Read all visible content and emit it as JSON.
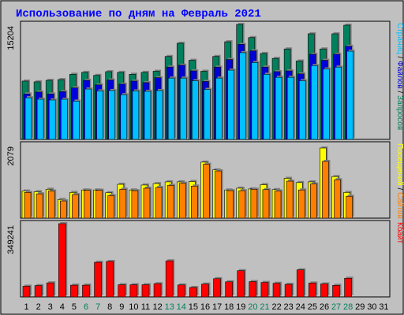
{
  "colors": {
    "background": "#C0C0C0",
    "title": "#0000FF",
    "hits": "#00805C",
    "files": "#0000D8",
    "pages": "#00C0FF",
    "visits": "#FFFF00",
    "sites": "#FF8000",
    "kbytes": "#FF0000",
    "day_weekday": "#000000",
    "day_weekend": "#00805C"
  },
  "chart_data": [
    {
      "type": "bar",
      "title": "Использование по дням на Февраль 2021",
      "categories": [
        "1",
        "2",
        "3",
        "4",
        "5",
        "6",
        "7",
        "8",
        "9",
        "10",
        "11",
        "12",
        "13",
        "14",
        "15",
        "16",
        "17",
        "18",
        "19",
        "20",
        "21",
        "22",
        "23",
        "24",
        "25",
        "26",
        "27",
        "28",
        "29",
        "30",
        "31"
      ],
      "weekend_days": [
        "6",
        "7",
        "13",
        "14",
        "20",
        "21",
        "27",
        "28"
      ],
      "ymax_label": "15204",
      "ylim": [
        0,
        15204
      ],
      "legend": [
        "Запросов",
        "Файлов",
        "Страниц"
      ],
      "legend_placement": "right, vertical",
      "series": [
        {
          "name": "Запросов",
          "values": [
            7710,
            7610,
            7810,
            7910,
            8610,
            8860,
            8460,
            8960,
            8860,
            8610,
            8860,
            9010,
            10960,
            12710,
            10460,
            9010,
            10960,
            12910,
            15204,
            13460,
            11360,
            10710,
            11960,
            10360,
            13960,
            11960,
            13960,
            15104,
            null,
            null,
            null
          ]
        },
        {
          "name": "Файлов",
          "values": [
            6010,
            6260,
            6010,
            6310,
            6810,
            7810,
            7210,
            7860,
            7310,
            7710,
            7510,
            8160,
            9560,
            9810,
            9060,
            7660,
            9560,
            10560,
            12560,
            11710,
            9560,
            8960,
            9060,
            8660,
            11260,
            10460,
            11260,
            12310,
            null,
            null,
            null
          ]
        },
        {
          "name": "Страниц",
          "values": [
            5510,
            5310,
            5210,
            5310,
            5060,
            6660,
            6410,
            6460,
            5910,
            6410,
            6360,
            6460,
            8110,
            8110,
            7760,
            6610,
            8110,
            9160,
            11460,
            10160,
            8610,
            8210,
            8210,
            7760,
            9760,
            9310,
            9560,
            11660,
            null,
            null,
            null
          ]
        }
      ]
    },
    {
      "type": "bar",
      "ymax_label": "2079",
      "ylim": [
        0,
        2079
      ],
      "legend": [
        "Сайтов",
        "Посещений"
      ],
      "legend_placement": "right, vertical",
      "series": [
        {
          "name": "Посещений",
          "values": [
            770,
            750,
            820,
            530,
            730,
            800,
            800,
            720,
            960,
            800,
            940,
            980,
            1030,
            1030,
            1040,
            1590,
            1370,
            800,
            850,
            830,
            950,
            810,
            1130,
            1010,
            1030,
            1990,
            1180,
            730,
            null,
            null,
            null
          ]
        },
        {
          "name": "Сайтов",
          "values": [
            730,
            690,
            770,
            490,
            670,
            790,
            790,
            640,
            820,
            780,
            850,
            870,
            930,
            990,
            910,
            1530,
            1340,
            780,
            780,
            820,
            810,
            770,
            1050,
            800,
            970,
            1610,
            1090,
            620,
            null,
            null,
            null
          ]
        }
      ]
    },
    {
      "type": "bar",
      "ymax_label": "349241",
      "ylim": [
        0,
        349241
      ],
      "legend": [
        "Кбайт"
      ],
      "legend_placement": "right, vertical",
      "series": [
        {
          "name": "Кбайт",
          "values": [
            51000,
            54000,
            67000,
            349241,
            56000,
            56000,
            165000,
            169000,
            58000,
            58000,
            58000,
            63000,
            172000,
            57000,
            45000,
            61000,
            87000,
            72000,
            125000,
            73000,
            69000,
            65000,
            60000,
            129000,
            66000,
            62000,
            55000,
            89000,
            null,
            null,
            null
          ]
        }
      ]
    }
  ]
}
